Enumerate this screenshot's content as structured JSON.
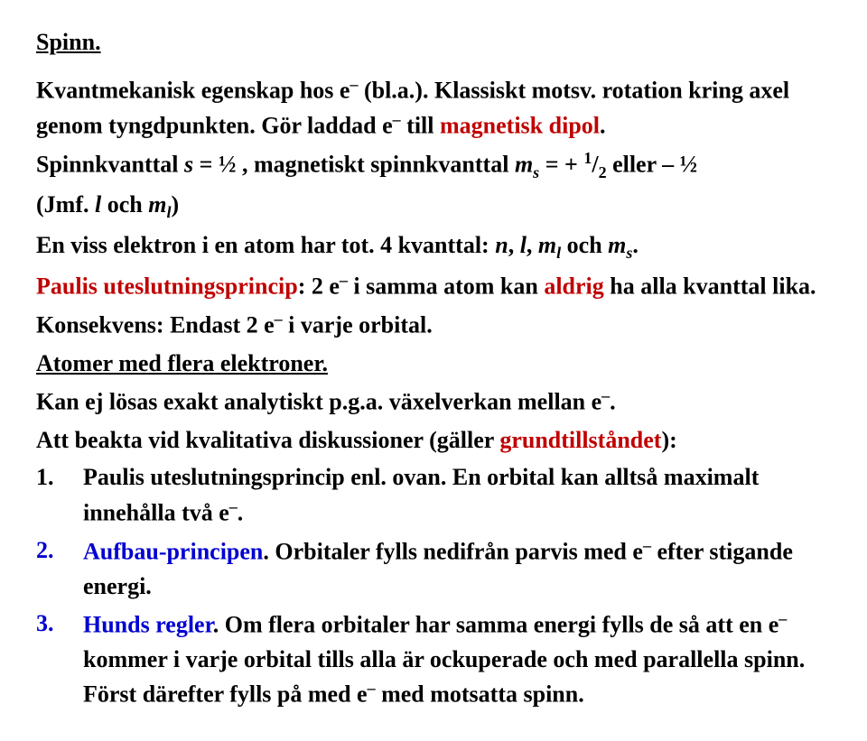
{
  "title": "Spinn.",
  "p1a": "Kvantmekanisk egenskap hos e",
  "p1b": " (bl.a.). Klassiskt motsv. rotation kring axel genom tyngdpunkten. Gör laddad e",
  "p1c": " till ",
  "p1d": "magnetisk dipol",
  "p1e": ".",
  "p2a": "Spinnkvanttal ",
  "p2b": "s",
  "p2c": " = ½ , magnetiskt spinnkvanttal ",
  "p2d": "m",
  "p2e": "s",
  "p2f": " = + ",
  "p2g": "1",
  "p2h": "/",
  "p2i": "2",
  "p2j": " eller – ½",
  "p3a": "(Jmf. ",
  "p3b": "l",
  "p3c": " och ",
  "p3d": "m",
  "p3e": "l",
  "p3f": ")",
  "p4a": "En viss elektron i en atom har tot. 4 kvanttal: ",
  "p4b": "n",
  "p4c": ", ",
  "p4d": "l",
  "p4e": ", ",
  "p4f": "m",
  "p4g": "l",
  "p4h": " och ",
  "p4i": "m",
  "p4j": "s",
  "p4k": ".",
  "p5a": "Paulis uteslutningsprincip",
  "p5b": ": 2 e",
  "p5c": " i samma atom kan ",
  "p5d": "aldrig",
  "p5e": " ha alla kvanttal lika.",
  "p6a": "Konsekvens: Endast 2 e",
  "p6b": " i varje orbital.",
  "p7": "Atomer med flera elektroner.",
  "p8a": "Kan ej lösas exakt analytiskt p.g.a. växelverkan mellan e",
  "p8b": ".",
  "p9a": "Att beakta vid kvalitativa diskussioner (gäller ",
  "p9b": "grundtillståndet",
  "p9c": "):",
  "li1n": "1.",
  "li1a": "Paulis uteslutningsprincip enl. ovan. En orbital kan alltså maximalt innehålla två e",
  "li1b": ".",
  "li2n": "2.",
  "li2a": "Aufbau-principen",
  "li2b": ". Orbitaler fylls nedifrån parvis med e",
  "li2c": " efter stigande energi.",
  "li3n": "3.",
  "li3a": "Hunds regler",
  "li3b": ". Om flera orbitaler har samma energi fylls de så att en e",
  "li3c": " kommer i varje orbital tills alla är ockuperade och med parallella spinn. Först därefter fylls på med e",
  "li3d": " med motsatta spinn.",
  "minus": "–"
}
